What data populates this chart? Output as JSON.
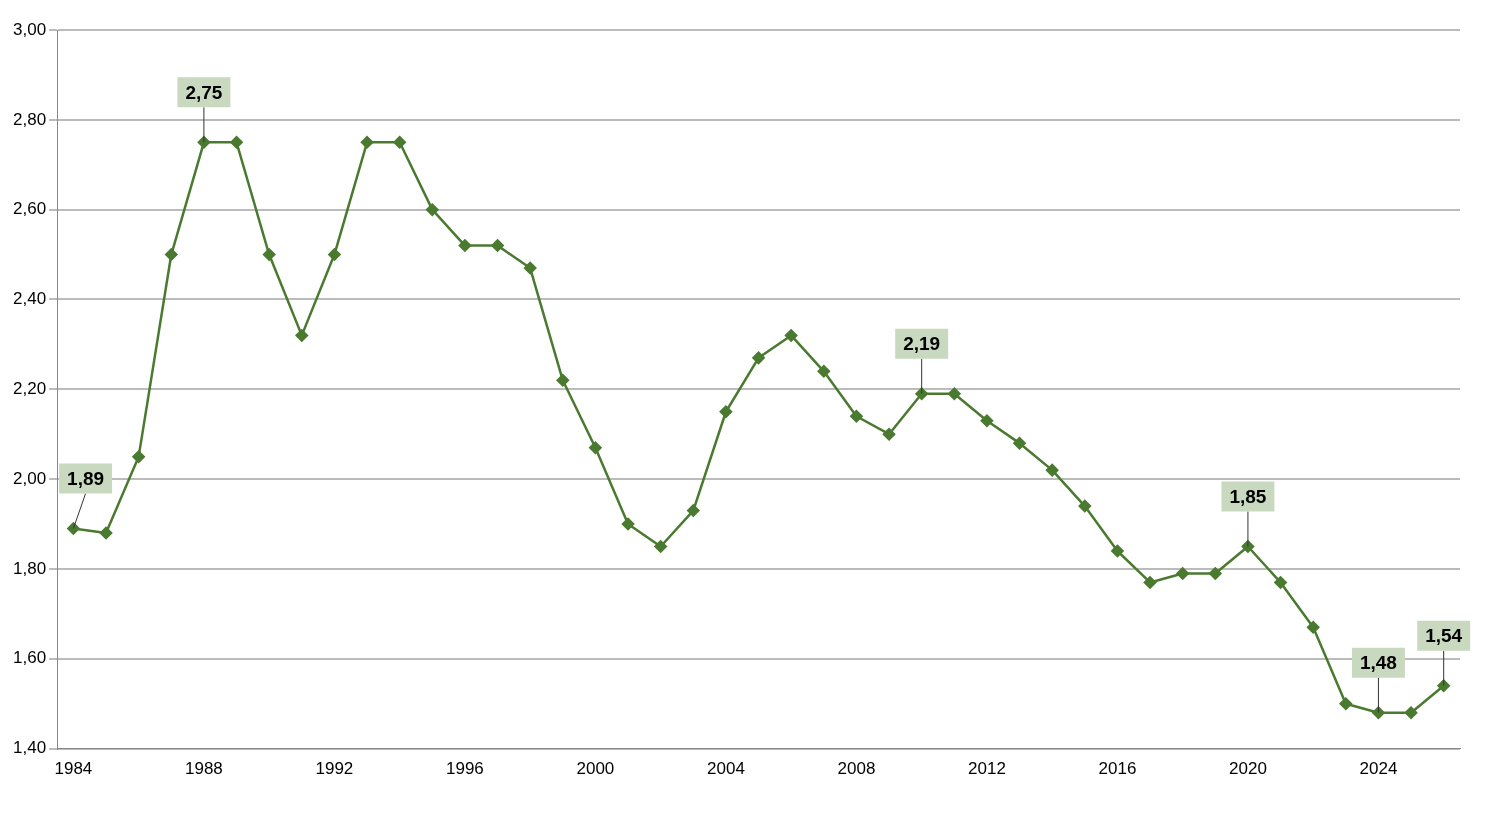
{
  "chart_data": {
    "type": "line",
    "x": [
      1984,
      1985,
      1986,
      1987,
      1988,
      1989,
      1990,
      1991,
      1992,
      1993,
      1994,
      1995,
      1996,
      1997,
      1998,
      1999,
      2000,
      2001,
      2002,
      2003,
      2004,
      2005,
      2006,
      2007,
      2008,
      2009,
      2010,
      2011,
      2012,
      2013,
      2014,
      2015,
      2016,
      2017,
      2018,
      2019,
      2020,
      2021,
      2022,
      2023,
      2024,
      2025,
      2026
    ],
    "series": [
      {
        "color": "#4a7a30",
        "values": [
          1.89,
          1.88,
          2.05,
          2.5,
          2.75,
          2.75,
          2.5,
          2.32,
          2.5,
          2.75,
          2.75,
          2.6,
          2.52,
          2.52,
          2.47,
          2.22,
          2.07,
          1.9,
          1.85,
          1.93,
          2.15,
          2.27,
          2.32,
          2.24,
          2.14,
          2.1,
          2.19,
          2.19,
          2.13,
          2.08,
          2.02,
          1.94,
          1.84,
          1.77,
          1.79,
          1.79,
          1.85,
          1.77,
          1.67,
          1.5,
          1.48,
          1.48,
          1.54
        ]
      }
    ],
    "xlim": [
      1983.5,
      2026.5
    ],
    "xticks": [
      1984,
      1988,
      1992,
      1996,
      2000,
      2004,
      2008,
      2012,
      2016,
      2020,
      2024
    ],
    "ylim": [
      1.4,
      3.0
    ],
    "yticks": [
      {
        "value": 1.4,
        "label": "1,40"
      },
      {
        "value": 1.6,
        "label": "1,60"
      },
      {
        "value": 1.8,
        "label": "1,80"
      },
      {
        "value": 2.0,
        "label": "2,00"
      },
      {
        "value": 2.2,
        "label": "2,20"
      },
      {
        "value": 2.4,
        "label": "2,40"
      },
      {
        "value": 2.6,
        "label": "2,60"
      },
      {
        "value": 2.8,
        "label": "2,80"
      },
      {
        "value": 3.0,
        "label": "3,00"
      }
    ],
    "grid": "y",
    "legend": false,
    "marker": "diamond",
    "line_style": "solid",
    "annotations": [
      {
        "text": "1,89",
        "x": 1984,
        "y": 1.89
      },
      {
        "text": "2,75",
        "x": 1988,
        "y": 2.75
      },
      {
        "text": "2,19",
        "x": 2010,
        "y": 2.19
      },
      {
        "text": "1,85",
        "x": 2020,
        "y": 1.85
      },
      {
        "text": "1,48",
        "x": 2024,
        "y": 1.48
      },
      {
        "text": "1,54",
        "x": 2026,
        "y": 1.54
      }
    ]
  }
}
